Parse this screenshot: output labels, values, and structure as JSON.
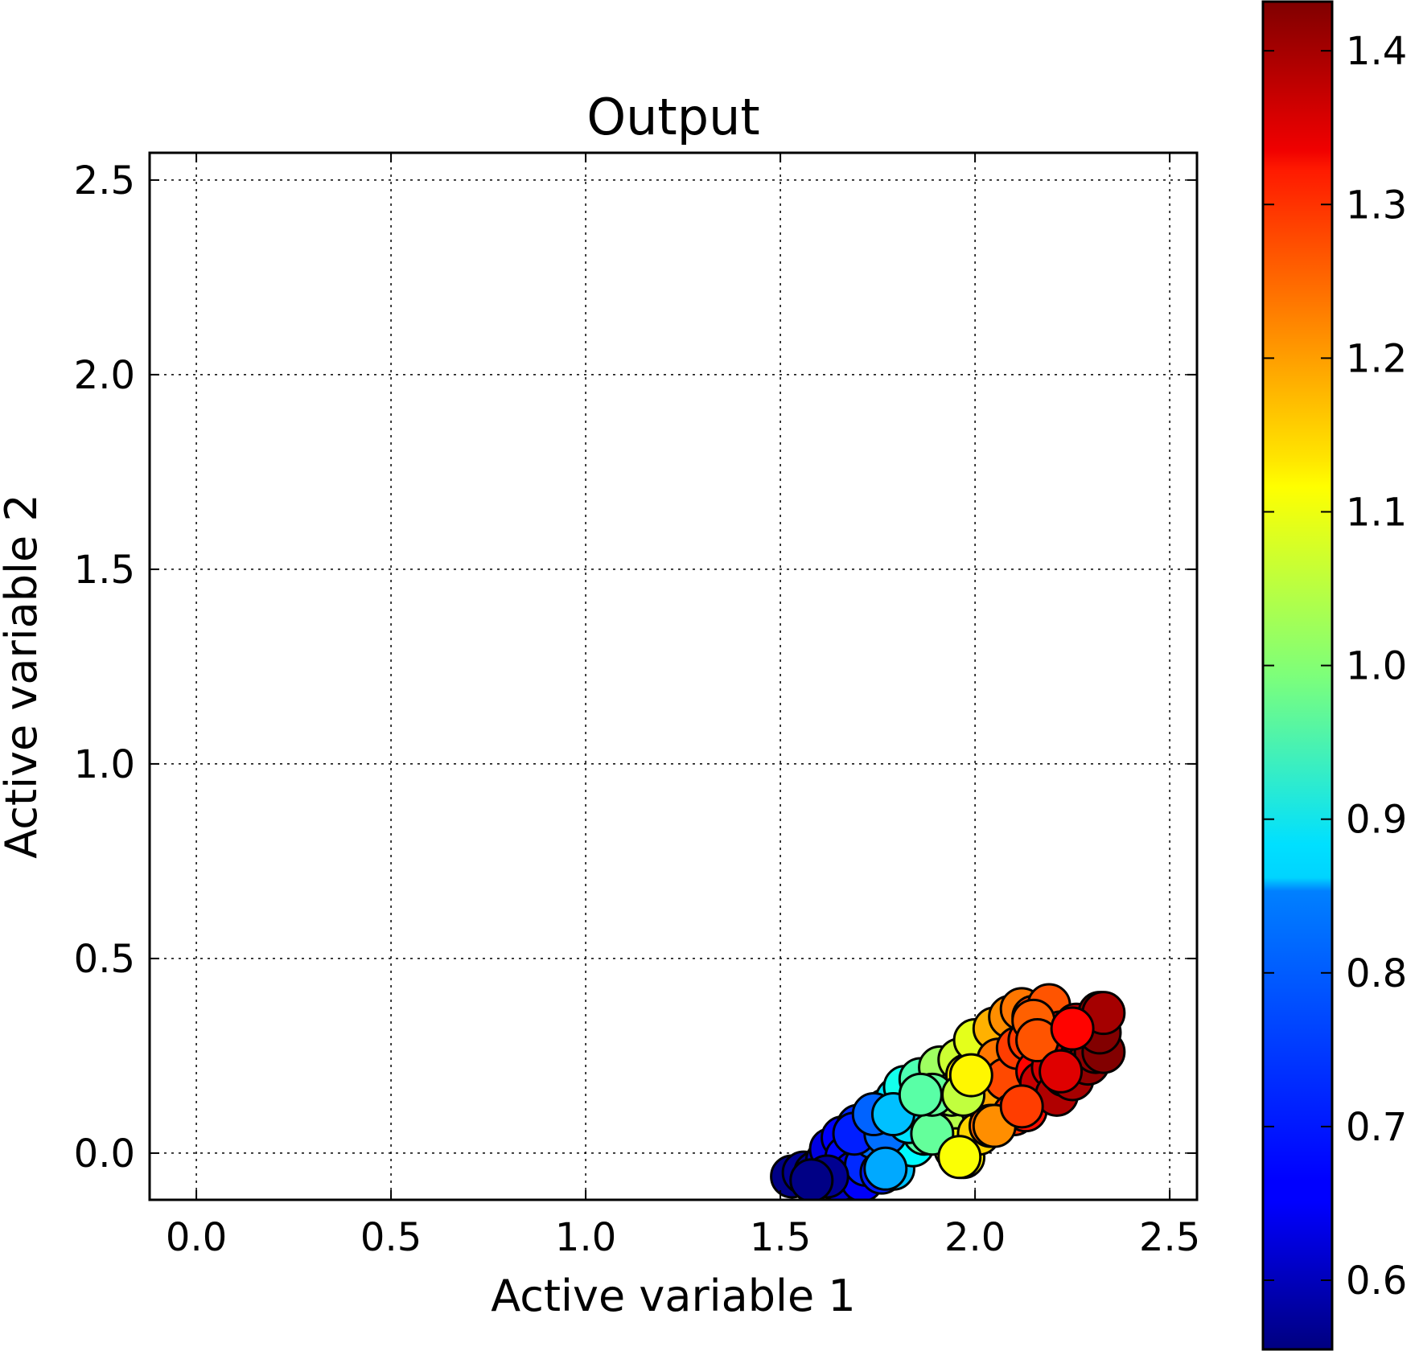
{
  "chart_data": {
    "type": "scatter",
    "title": "Output",
    "xlabel": "Active variable 1",
    "ylabel": "Active variable 2",
    "xlim": [
      -0.12,
      2.57
    ],
    "ylim": [
      -0.12,
      2.57
    ],
    "x_ticks": [
      0.0,
      0.5,
      1.0,
      1.5,
      2.0,
      2.5
    ],
    "y_ticks": [
      0.0,
      0.5,
      1.0,
      1.5,
      2.0,
      2.5
    ],
    "x_tick_labels": [
      "0.0",
      "0.5",
      "1.0",
      "1.5",
      "2.0",
      "2.5"
    ],
    "y_tick_labels": [
      "0.0",
      "0.5",
      "1.0",
      "1.5",
      "2.0",
      "2.5"
    ],
    "grid": true,
    "colormap": "jet",
    "colorbar": {
      "vmin": 0.555,
      "vmax": 1.432,
      "ticks": [
        0.6,
        0.7,
        0.8,
        0.9,
        1.0,
        1.1,
        1.2,
        1.3,
        1.4
      ],
      "tick_labels": [
        "0.6",
        "0.7",
        "0.8",
        "0.9",
        "1.0",
        "1.1",
        "1.2",
        "1.3",
        "1.4"
      ]
    },
    "marker": {
      "shape": "circle",
      "edgecolor": "#000000"
    },
    "points": [
      {
        "x": 1.53,
        "y": -0.06,
        "c": 0.56
      },
      {
        "x": 1.56,
        "y": -0.05,
        "c": 0.57
      },
      {
        "x": 1.58,
        "y": -0.07,
        "c": 0.58
      },
      {
        "x": 1.59,
        "y": -0.05,
        "c": 0.56
      },
      {
        "x": 1.62,
        "y": -0.02,
        "c": 0.6
      },
      {
        "x": 1.63,
        "y": 0.01,
        "c": 0.64
      },
      {
        "x": 1.65,
        "y": -0.07,
        "c": 0.62
      },
      {
        "x": 1.66,
        "y": 0.04,
        "c": 0.66
      },
      {
        "x": 1.67,
        "y": -0.01,
        "c": 0.67
      },
      {
        "x": 1.69,
        "y": -0.05,
        "c": 0.64
      },
      {
        "x": 1.7,
        "y": 0.07,
        "c": 0.7
      },
      {
        "x": 1.71,
        "y": -0.07,
        "c": 0.66
      },
      {
        "x": 1.72,
        "y": 0.02,
        "c": 0.73
      },
      {
        "x": 1.72,
        "y": -0.03,
        "c": 0.7
      },
      {
        "x": 1.74,
        "y": 0.09,
        "c": 0.75
      },
      {
        "x": 1.74,
        "y": 0.04,
        "c": 0.76
      },
      {
        "x": 1.76,
        "y": -0.05,
        "c": 0.69
      },
      {
        "x": 1.77,
        "y": 0.11,
        "c": 0.8
      },
      {
        "x": 1.78,
        "y": 0.1,
        "c": 0.83
      },
      {
        "x": 1.79,
        "y": -0.04,
        "c": 0.83
      },
      {
        "x": 1.8,
        "y": 0.14,
        "c": 0.86
      },
      {
        "x": 1.81,
        "y": 0.03,
        "c": 0.87
      },
      {
        "x": 1.82,
        "y": 0.17,
        "c": 0.9
      },
      {
        "x": 1.84,
        "y": 0.02,
        "c": 0.88
      },
      {
        "x": 1.85,
        "y": 0.09,
        "c": 0.92
      },
      {
        "x": 1.86,
        "y": 0.19,
        "c": 0.95
      },
      {
        "x": 1.87,
        "y": 0.05,
        "c": 0.96
      },
      {
        "x": 1.88,
        "y": 0.15,
        "c": 0.98
      },
      {
        "x": 1.9,
        "y": 0.11,
        "c": 1.0
      },
      {
        "x": 1.91,
        "y": 0.22,
        "c": 1.02
      },
      {
        "x": 1.92,
        "y": 0.07,
        "c": 1.04
      },
      {
        "x": 1.94,
        "y": 0.15,
        "c": 1.03
      },
      {
        "x": 1.95,
        "y": 0.01,
        "c": 1.1
      },
      {
        "x": 1.96,
        "y": 0.24,
        "c": 1.06
      },
      {
        "x": 1.97,
        "y": -0.01,
        "c": 1.12
      },
      {
        "x": 1.98,
        "y": 0.2,
        "c": 1.12
      },
      {
        "x": 2.0,
        "y": 0.29,
        "c": 1.08
      },
      {
        "x": 2.01,
        "y": 0.05,
        "c": 1.14
      },
      {
        "x": 2.02,
        "y": 0.14,
        "c": 1.18
      },
      {
        "x": 2.04,
        "y": 0.07,
        "c": 1.23
      },
      {
        "x": 2.05,
        "y": 0.32,
        "c": 1.17
      },
      {
        "x": 2.06,
        "y": 0.24,
        "c": 1.22
      },
      {
        "x": 2.08,
        "y": 0.19,
        "c": 1.26
      },
      {
        "x": 2.09,
        "y": 0.35,
        "c": 1.2
      },
      {
        "x": 2.1,
        "y": 0.1,
        "c": 1.28
      },
      {
        "x": 2.11,
        "y": 0.27,
        "c": 1.27
      },
      {
        "x": 2.12,
        "y": 0.37,
        "c": 1.22
      },
      {
        "x": 2.13,
        "y": 0.11,
        "c": 1.31
      },
      {
        "x": 2.14,
        "y": 0.29,
        "c": 1.27
      },
      {
        "x": 2.15,
        "y": 0.35,
        "c": 1.26
      },
      {
        "x": 2.16,
        "y": 0.21,
        "c": 1.32
      },
      {
        "x": 2.17,
        "y": 0.18,
        "c": 1.37
      },
      {
        "x": 2.18,
        "y": 0.3,
        "c": 1.3
      },
      {
        "x": 2.19,
        "y": 0.38,
        "c": 1.25
      },
      {
        "x": 2.2,
        "y": 0.22,
        "c": 1.36
      },
      {
        "x": 2.21,
        "y": 0.15,
        "c": 1.39
      },
      {
        "x": 2.22,
        "y": 0.31,
        "c": 1.34
      },
      {
        "x": 2.23,
        "y": 0.2,
        "c": 1.38
      },
      {
        "x": 2.24,
        "y": 0.26,
        "c": 1.36
      },
      {
        "x": 2.25,
        "y": 0.19,
        "c": 1.4
      },
      {
        "x": 2.26,
        "y": 0.33,
        "c": 1.38
      },
      {
        "x": 2.27,
        "y": 0.24,
        "c": 1.41
      },
      {
        "x": 2.28,
        "y": 0.29,
        "c": 1.4
      },
      {
        "x": 2.29,
        "y": 0.23,
        "c": 1.42
      },
      {
        "x": 2.3,
        "y": 0.31,
        "c": 1.41
      },
      {
        "x": 2.31,
        "y": 0.26,
        "c": 1.42
      },
      {
        "x": 2.32,
        "y": 0.36,
        "c": 1.43
      },
      {
        "x": 2.33,
        "y": 0.26,
        "c": 1.43
      },
      {
        "x": 2.32,
        "y": 0.31,
        "c": 1.43
      },
      {
        "x": 2.33,
        "y": 0.36,
        "c": 1.4
      },
      {
        "x": 1.62,
        "y": -0.06,
        "c": 0.57
      },
      {
        "x": 1.69,
        "y": 0.05,
        "c": 0.69
      },
      {
        "x": 1.77,
        "y": 0.05,
        "c": 0.76
      },
      {
        "x": 1.83,
        "y": 0.08,
        "c": 0.86
      },
      {
        "x": 1.89,
        "y": 0.05,
        "c": 0.97
      },
      {
        "x": 1.89,
        "y": 0.15,
        "c": 0.97
      },
      {
        "x": 1.97,
        "y": 0.15,
        "c": 1.05
      },
      {
        "x": 1.99,
        "y": 0.2,
        "c": 1.11
      },
      {
        "x": 2.05,
        "y": 0.07,
        "c": 1.2
      },
      {
        "x": 2.12,
        "y": 0.12,
        "c": 1.27
      },
      {
        "x": 2.15,
        "y": 0.34,
        "c": 1.24
      },
      {
        "x": 2.16,
        "y": 0.29,
        "c": 1.25
      },
      {
        "x": 2.22,
        "y": 0.21,
        "c": 1.35
      },
      {
        "x": 2.25,
        "y": 0.32,
        "c": 1.32
      },
      {
        "x": 1.74,
        "y": 0.1,
        "c": 0.75
      },
      {
        "x": 1.79,
        "y": 0.1,
        "c": 0.83
      },
      {
        "x": 1.86,
        "y": 0.15,
        "c": 0.96
      },
      {
        "x": 1.96,
        "y": -0.01,
        "c": 1.1
      },
      {
        "x": 1.77,
        "y": -0.04,
        "c": 0.81
      },
      {
        "x": 1.58,
        "y": -0.07,
        "c": 0.56
      }
    ]
  }
}
